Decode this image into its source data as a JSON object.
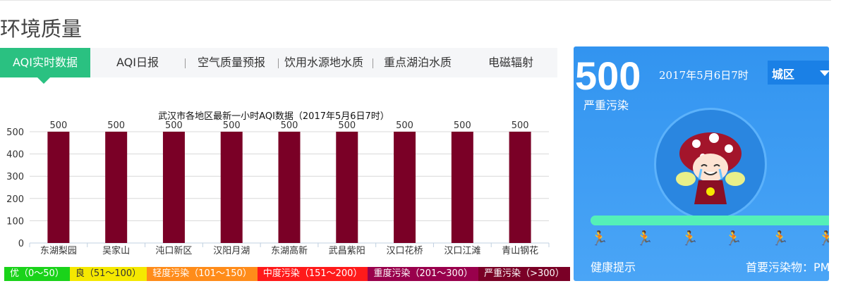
{
  "page_title": "环境质量",
  "tabs": [
    {
      "label": "AQI实时数据",
      "active": true
    },
    {
      "label": "AQI日报"
    },
    {
      "label": "空气质量预报"
    },
    {
      "label": "饮用水源地水质"
    },
    {
      "label": "重点湖泊水质"
    },
    {
      "label": "电磁辐射"
    }
  ],
  "chart_data": {
    "type": "bar",
    "title": "武汉市各地区最新一小时AQI数据（2017年5月6日7时）",
    "categories": [
      "东湖梨园",
      "吴家山",
      "沌口新区",
      "汉阳月湖",
      "东湖高新",
      "武昌紫阳",
      "汉口花桥",
      "汉口江滩",
      "青山钢花"
    ],
    "values": [
      500,
      500,
      500,
      500,
      500,
      500,
      500,
      500,
      500
    ],
    "yticks": [
      "0",
      "100",
      "200",
      "300",
      "400",
      "500"
    ],
    "ylim": [
      0,
      500
    ],
    "bar_color": "#7a0026",
    "grid": true
  },
  "legend": [
    {
      "label": "优（0～50）",
      "color": "#1ad31a"
    },
    {
      "label": "良（51～100）",
      "color": "#f5e800"
    },
    {
      "label": "轻度污染（101～150）",
      "color": "#ff8c1a"
    },
    {
      "label": "中度污染（151～200）",
      "color": "#ff1a1a"
    },
    {
      "label": "重度污染（201～300）",
      "color": "#99004c"
    },
    {
      "label": "严重污染（>300）",
      "color": "#7a0026"
    }
  ],
  "panel": {
    "aqi_value": "500",
    "aqi_level": "严重污染",
    "datetime": "2017年5月6日7时",
    "district": "城区",
    "health_tip_label": "健康提示",
    "primary_pollutant_label": "首要污染物：PM",
    "progress": 1.0,
    "runner_colors": [
      "#54f0b8",
      "#f5e800",
      "#ff8c1a",
      "#ff1a1a",
      "#99004c",
      "#7a0026"
    ]
  }
}
